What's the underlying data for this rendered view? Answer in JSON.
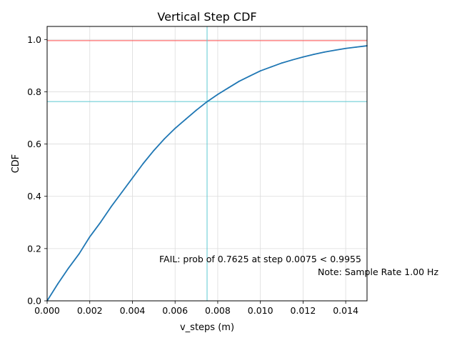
{
  "chart_data": {
    "type": "line",
    "title": "Vertical Step CDF",
    "xlabel": "v_steps (m)",
    "ylabel": "CDF",
    "xlim": [
      0,
      0.015
    ],
    "ylim": [
      0,
      1.05
    ],
    "xticks": [
      0,
      0.002,
      0.004,
      0.006,
      0.008,
      0.01,
      0.012,
      0.014
    ],
    "xtick_labels": [
      "0.000",
      "0.002",
      "0.004",
      "0.006",
      "0.008",
      "0.010",
      "0.012",
      "0.014"
    ],
    "yticks": [
      0,
      0.2,
      0.4,
      0.6,
      0.8,
      1.0
    ],
    "ytick_labels": [
      "0.0",
      "0.2",
      "0.4",
      "0.6",
      "0.8",
      "1.0"
    ],
    "grid": true,
    "series": [
      {
        "color": "#1f77b4",
        "x": [
          0,
          0.0005,
          0.001,
          0.0015,
          0.002,
          0.0025,
          0.003,
          0.0035,
          0.004,
          0.0045,
          0.005,
          0.0055,
          0.006,
          0.0065,
          0.007,
          0.0075,
          0.008,
          0.0085,
          0.009,
          0.0095,
          0.01,
          0.0105,
          0.011,
          0.0115,
          0.012,
          0.0125,
          0.013,
          0.0135,
          0.014,
          0.0145,
          0.015
        ],
        "y": [
          0.0,
          0.065,
          0.125,
          0.18,
          0.245,
          0.3,
          0.36,
          0.415,
          0.47,
          0.525,
          0.575,
          0.62,
          0.66,
          0.695,
          0.73,
          0.762,
          0.79,
          0.815,
          0.84,
          0.86,
          0.88,
          0.895,
          0.91,
          0.922,
          0.933,
          0.943,
          0.952,
          0.959,
          0.966,
          0.971,
          0.976
        ]
      }
    ],
    "reference_lines": {
      "threshold_y": 0.9955,
      "threshold_color": "#ff4d4d",
      "step_x": 0.0075,
      "prob_y": 0.7625,
      "marker_color": "#5bc8d1"
    },
    "annotations": {
      "fail_text": "FAIL: prob of 0.7625 at step 0.0075 < 0.9955",
      "fail_color": "#ff0000",
      "note_text": "Note: Sample Rate 1.00 Hz"
    }
  }
}
